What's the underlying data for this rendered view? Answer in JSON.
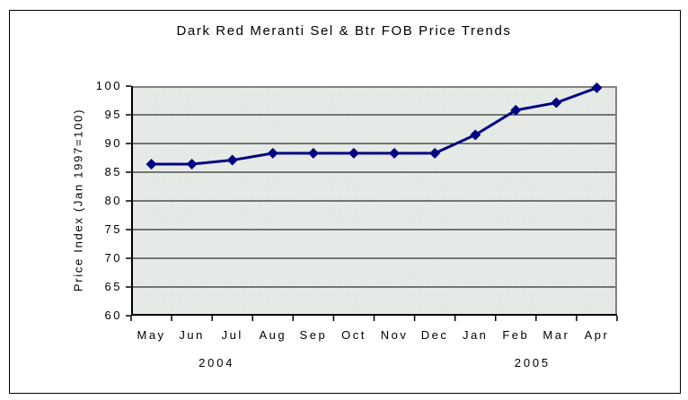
{
  "frame": {
    "background": "#ffffff",
    "border_color": "#000000"
  },
  "chart_data": {
    "type": "line",
    "title": "Dark Red Meranti Sel & Btr FOB Price Trends",
    "xlabel": "",
    "ylabel": "Price Index (Jan 1997=100)",
    "categories": [
      "May",
      "Jun",
      "Jul",
      "Aug",
      "Sep",
      "Oct",
      "Nov",
      "Dec",
      "Jan",
      "Feb",
      "Mar",
      "Apr"
    ],
    "values": [
      86.4,
      86.4,
      87.1,
      88.3,
      88.3,
      88.3,
      88.3,
      88.3,
      91.5,
      95.8,
      97.1,
      99.7
    ],
    "year_labels": [
      {
        "text": "2004",
        "x_frac": 0.176
      },
      {
        "text": "2005",
        "x_frac": 0.826
      }
    ],
    "ylim": [
      60,
      100
    ],
    "ytick_interval": 5,
    "yticks": [
      60,
      65,
      70,
      75,
      80,
      85,
      90,
      95,
      100
    ],
    "grid": "horizontal-only",
    "legend_position": "none",
    "line_color": "#000082",
    "marker_shape": "diamond",
    "marker_color": "#000082",
    "gridline_color": "#000000",
    "axis_color": "#000000",
    "plot_border_color": "#848284",
    "plot_bg_dither_color": "#ccd4cc"
  }
}
